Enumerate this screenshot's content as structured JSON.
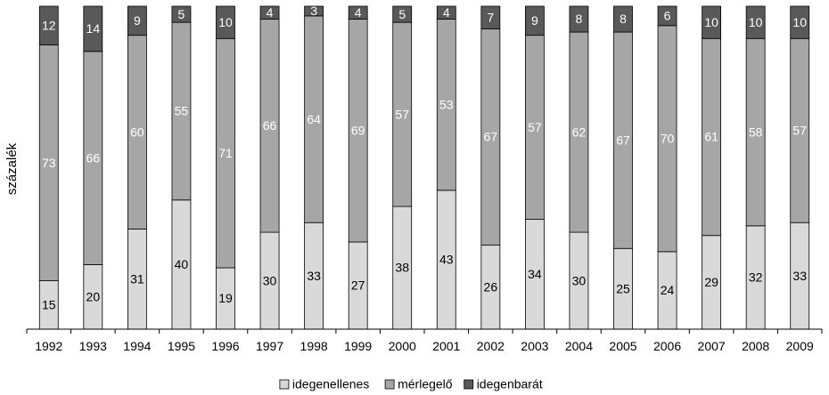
{
  "chart_data": {
    "type": "bar",
    "stacked": true,
    "ylabel": "százalék",
    "ylim": [
      0,
      100
    ],
    "grid": false,
    "legend_position": "bottom",
    "categories": [
      "1992",
      "1993",
      "1994",
      "1995",
      "1996",
      "1997",
      "1998",
      "1999",
      "2000",
      "2001",
      "2002",
      "2003",
      "2004",
      "2005",
      "2006",
      "2007",
      "2008",
      "2009"
    ],
    "series": [
      {
        "name": "idegenellenes",
        "color": "#d9d9d9",
        "label_color": "#000000",
        "values": [
          15,
          20,
          31,
          40,
          19,
          30,
          33,
          27,
          38,
          43,
          26,
          34,
          30,
          25,
          24,
          29,
          32,
          33
        ]
      },
      {
        "name": "mérlegelő",
        "color": "#a6a6a6",
        "label_color": "#ffffff",
        "values": [
          73,
          66,
          60,
          55,
          71,
          66,
          64,
          69,
          57,
          53,
          67,
          57,
          62,
          67,
          70,
          61,
          58,
          57
        ]
      },
      {
        "name": "idegenbarát",
        "color": "#595959",
        "label_color": "#ffffff",
        "values": [
          12,
          14,
          9,
          5,
          10,
          4,
          3,
          4,
          5,
          4,
          7,
          9,
          8,
          8,
          6,
          10,
          10,
          10
        ]
      }
    ]
  }
}
